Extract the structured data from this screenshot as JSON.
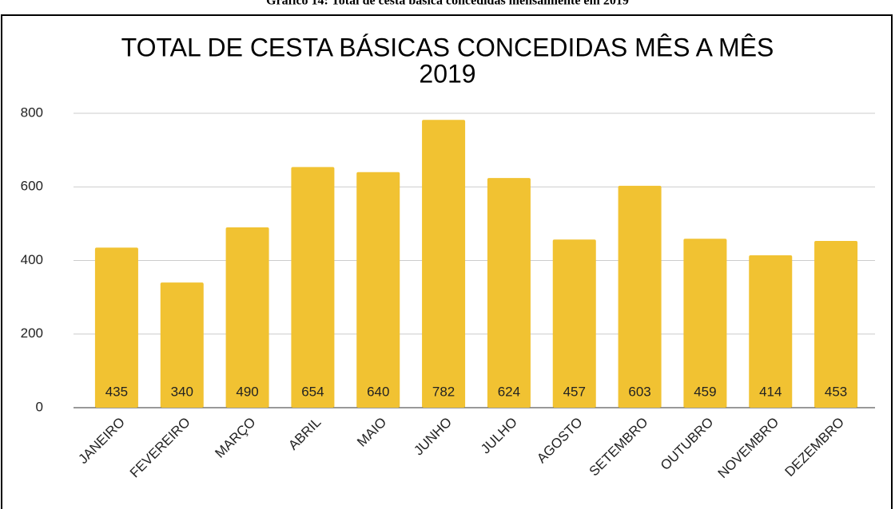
{
  "caption": "Gráfico 14: Total de cesta básica concedidas mensalmente em 2019",
  "chart_data": {
    "type": "bar",
    "title": [
      "TOTAL DE CESTA BÁSICAS CONCEDIDAS MÊS A MÊS",
      "2019"
    ],
    "categories": [
      "JANEIRO",
      "FEVEREIRO",
      "MARÇO",
      "ABRIL",
      "MAIO",
      "JUNHO",
      "JULHO",
      "AGOSTO",
      "SETEMBRO",
      "OUTUBRO",
      "NOVEMBRO",
      "DEZEMBRO"
    ],
    "values": [
      435,
      340,
      490,
      654,
      640,
      782,
      624,
      457,
      603,
      459,
      414,
      453
    ],
    "color": "#f1c232",
    "ylim": [
      0,
      800
    ],
    "yticks": [
      0,
      200,
      400,
      600,
      800
    ],
    "grid": true
  }
}
